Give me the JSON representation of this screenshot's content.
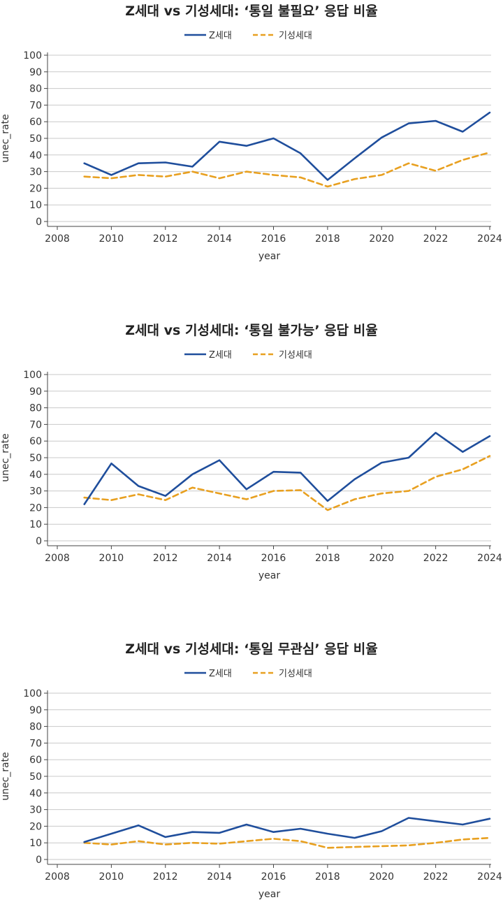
{
  "chart_data": [
    {
      "type": "line",
      "title": "Z세대 vs 기성세대: ‘통일 불필요’ 응답 비율",
      "xlabel": "year",
      "ylabel": "unec_rate",
      "xlim": [
        2008,
        2024
      ],
      "ylim": [
        0,
        100
      ],
      "x_ticks": [
        2008,
        2010,
        2012,
        2014,
        2016,
        2018,
        2020,
        2022,
        2024
      ],
      "y_ticks": [
        0,
        10,
        20,
        30,
        40,
        50,
        60,
        70,
        80,
        90,
        100
      ],
      "grid": "horizontal",
      "legend": "top-center",
      "x": [
        2009,
        2010,
        2011,
        2012,
        2013,
        2014,
        2015,
        2016,
        2017,
        2018,
        2019,
        2020,
        2021,
        2022,
        2023,
        2024
      ],
      "series": [
        {
          "name": "Z세대",
          "color": "#1f4e9c",
          "style": "solid",
          "values": [
            35,
            28,
            35,
            35.5,
            33,
            48,
            45.5,
            50,
            41,
            25,
            38,
            50.5,
            59,
            60.5,
            54,
            65.5
          ]
        },
        {
          "name": "기성세대",
          "color": "#e8a020",
          "style": "dashed",
          "values": [
            27,
            26,
            28,
            27,
            30,
            26,
            30,
            28,
            26.5,
            21,
            25.5,
            28,
            35,
            30.5,
            37,
            41.5
          ]
        }
      ]
    },
    {
      "type": "line",
      "title": "Z세대 vs 기성세대: ‘통일 불가능’ 응답 비율",
      "xlabel": "year",
      "ylabel": "unec_rate",
      "xlim": [
        2008,
        2024
      ],
      "ylim": [
        0,
        100
      ],
      "x_ticks": [
        2008,
        2010,
        2012,
        2014,
        2016,
        2018,
        2020,
        2022,
        2024
      ],
      "y_ticks": [
        0,
        10,
        20,
        30,
        40,
        50,
        60,
        70,
        80,
        90,
        100
      ],
      "grid": "horizontal",
      "legend": "top-center",
      "x": [
        2009,
        2010,
        2011,
        2012,
        2013,
        2014,
        2015,
        2016,
        2017,
        2018,
        2019,
        2020,
        2021,
        2022,
        2023,
        2024
      ],
      "series": [
        {
          "name": "Z세대",
          "color": "#1f4e9c",
          "style": "solid",
          "values": [
            22,
            46.5,
            33,
            27,
            40,
            48.5,
            31,
            41.5,
            41,
            24,
            37,
            47,
            50,
            65,
            53.5,
            63
          ]
        },
        {
          "name": "기성세대",
          "color": "#e8a020",
          "style": "dashed",
          "values": [
            26,
            24.5,
            28,
            24.5,
            32,
            28.5,
            25,
            30,
            30.5,
            18.5,
            25,
            28.5,
            30,
            38.5,
            43,
            51
          ]
        }
      ]
    },
    {
      "type": "line",
      "title": "Z세대 vs 기성세대: ‘통일 무관심’ 응답 비율",
      "xlabel": "year",
      "ylabel": "unec_rate",
      "xlim": [
        2008,
        2024
      ],
      "ylim": [
        0,
        100
      ],
      "x_ticks": [
        2008,
        2010,
        2012,
        2014,
        2016,
        2018,
        2020,
        2022,
        2024
      ],
      "y_ticks": [
        0,
        10,
        20,
        30,
        40,
        50,
        60,
        70,
        80,
        90,
        100
      ],
      "grid": "horizontal",
      "legend": "top-center",
      "x": [
        2009,
        2010,
        2011,
        2012,
        2013,
        2014,
        2015,
        2016,
        2017,
        2018,
        2019,
        2020,
        2021,
        2022,
        2023,
        2024
      ],
      "series": [
        {
          "name": "Z세대",
          "color": "#1f4e9c",
          "style": "solid",
          "values": [
            10.5,
            15.5,
            20.5,
            13.5,
            16.5,
            16,
            21,
            16.5,
            18.5,
            15.5,
            13,
            17,
            25,
            23,
            21,
            24.5
          ]
        },
        {
          "name": "기성세대",
          "color": "#e8a020",
          "style": "dashed",
          "values": [
            10,
            9,
            11,
            9,
            10,
            9.5,
            11,
            12.5,
            11,
            7,
            7.5,
            8,
            8.5,
            10,
            12,
            13
          ]
        }
      ]
    }
  ]
}
